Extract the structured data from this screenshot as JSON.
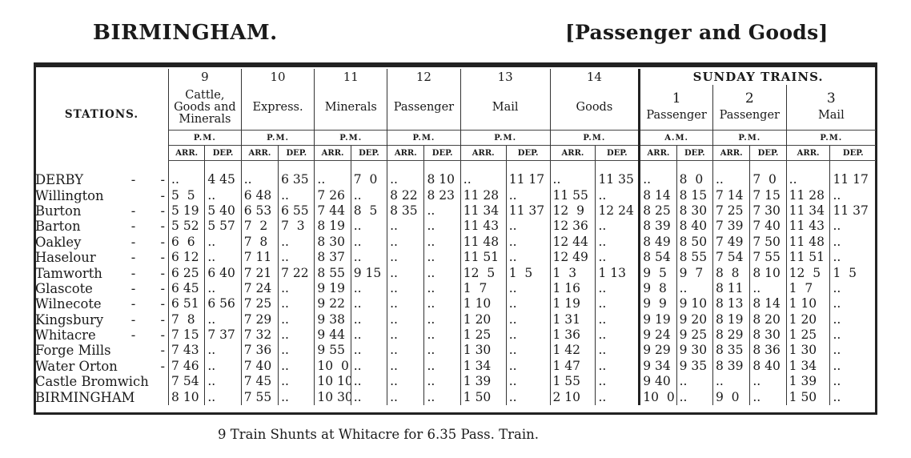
{
  "header": {
    "place": "BIRMINGHAM.",
    "category": "[Passenger and Goods]"
  },
  "columns": {
    "stations_label": "STATIONS.",
    "sunday_label": "SUNDAY TRAINS.",
    "weekday": [
      {
        "num": "9",
        "type": "Cattle, Goods and Minerals",
        "period": "P.M."
      },
      {
        "num": "10",
        "type": "Express.",
        "period": "P.M."
      },
      {
        "num": "11",
        "type": "Minerals",
        "period": "P.M."
      },
      {
        "num": "12",
        "type": "Passenger",
        "period": "P.M."
      },
      {
        "num": "13",
        "type": "Mail",
        "period": "P.M."
      },
      {
        "num": "14",
        "type": "Goods",
        "period": "P.M."
      }
    ],
    "sunday": [
      {
        "num": "1",
        "type": "Passenger",
        "period": "A.M."
      },
      {
        "num": "2",
        "type": "Passenger",
        "period": "P.M."
      },
      {
        "num": "3",
        "type": "Mail",
        "period": "P.M."
      }
    ],
    "arr": "ARR.",
    "dep": "DEP."
  },
  "rows": [
    {
      "station": "DERBY",
      "dash": "-      -",
      "times": [
        "..",
        "4 45",
        "..",
        "6 35",
        "..",
        "7  0",
        "..",
        "8 10",
        "..",
        "11 17",
        "..",
        "11 35",
        "..",
        "8  0",
        "..",
        "7  0",
        "..",
        "11 17"
      ]
    },
    {
      "station": "Willington",
      "dash": "-",
      "times": [
        "5  5",
        "..",
        "6 48",
        "..",
        "7 26",
        "..",
        "8 22",
        "8 23",
        "11 28",
        "..",
        "11 55",
        "..",
        "8 14",
        "8 15",
        "7 14",
        "7 15",
        "11 28",
        ".."
      ]
    },
    {
      "station": "Burton",
      "dash": "-      -",
      "times": [
        "5 19",
        "5 40",
        "6 53",
        "6 55",
        "7 44",
        "8  5",
        "8 35",
        "..",
        "11 34",
        "11 37",
        "12  9",
        "12 24",
        "8 25",
        "8 30",
        "7 25",
        "7 30",
        "11 34",
        "11 37"
      ]
    },
    {
      "station": "Barton",
      "dash": "-      -",
      "times": [
        "5 52",
        "5 57",
        "7  2",
        "7  3",
        "8 19",
        "..",
        "..",
        "..",
        "11 43",
        "..",
        "12 36",
        "..",
        "8 39",
        "8 40",
        "7 39",
        "7 40",
        "11 43",
        ".."
      ]
    },
    {
      "station": "Oakley",
      "dash": "-      -",
      "times": [
        "6  6",
        "..",
        "7  8",
        "..",
        "8 30",
        "..",
        "..",
        "..",
        "11 48",
        "..",
        "12 44",
        "..",
        "8 49",
        "8 50",
        "7 49",
        "7 50",
        "11 48",
        ".."
      ]
    },
    {
      "station": "Haselour",
      "dash": "-      -",
      "times": [
        "6 12",
        "..",
        "7 11",
        "..",
        "8 37",
        "..",
        "..",
        "..",
        "11 51",
        "..",
        "12 49",
        "..",
        "8 54",
        "8 55",
        "7 54",
        "7 55",
        "11 51",
        ".."
      ]
    },
    {
      "station": "Tamworth",
      "dash": "-      -",
      "times": [
        "6 25",
        "6 40",
        "7 21",
        "7 22",
        "8 55",
        "9 15",
        "..",
        "..",
        "12  5",
        "1  5",
        "1  3",
        "1 13",
        "9  5",
        "9  7",
        "8  8",
        "8 10",
        "12  5",
        "1  5"
      ]
    },
    {
      "station": "Glascote",
      "dash": "-      -",
      "times": [
        "6 45",
        "..",
        "7 24",
        "..",
        "9 19",
        "..",
        "..",
        "..",
        "1  7",
        "..",
        "1 16",
        "..",
        "9  8",
        "..",
        "8 11",
        "..",
        "1  7",
        ".."
      ]
    },
    {
      "station": "Wilnecote",
      "dash": "-      -",
      "times": [
        "6 51",
        "6 56",
        "7 25",
        "..",
        "9 22",
        "..",
        "..",
        "..",
        "1 10",
        "..",
        "1 19",
        "..",
        "9  9",
        "9 10",
        "8 13",
        "8 14",
        "1 10",
        ".."
      ]
    },
    {
      "station": "Kingsbury",
      "dash": "-      -",
      "times": [
        "7  8",
        "..",
        "7 29",
        "..",
        "9 38",
        "..",
        "..",
        "..",
        "1 20",
        "..",
        "1 31",
        "..",
        "9 19",
        "9 20",
        "8 19",
        "8 20",
        "1 20",
        ".."
      ]
    },
    {
      "station": "Whitacre",
      "dash": "-      -",
      "times": [
        "7 15",
        "7 37",
        "7 32",
        "..",
        "9 44",
        "..",
        "..",
        "..",
        "1 25",
        "..",
        "1 36",
        "..",
        "9 24",
        "9 25",
        "8 29",
        "8 30",
        "1 25",
        ".."
      ]
    },
    {
      "station": "Forge Mills",
      "dash": "-",
      "times": [
        "7 43",
        "..",
        "7 36",
        "..",
        "9 55",
        "..",
        "..",
        "..",
        "1 30",
        "..",
        "1 42",
        "..",
        "9 29",
        "9 30",
        "8 35",
        "8 36",
        "1 30",
        ".."
      ]
    },
    {
      "station": "Water Orton",
      "dash": "-",
      "times": [
        "7 46",
        "..",
        "7 40",
        "..",
        "10  0",
        "..",
        "..",
        "..",
        "1 34",
        "..",
        "1 47",
        "..",
        "9 34",
        "9 35",
        "8 39",
        "8 40",
        "1 34",
        ".."
      ]
    },
    {
      "station": "Castle Bromwich",
      "dash": "",
      "times": [
        "7 54",
        "..",
        "7 45",
        "..",
        "10 10",
        "..",
        "..",
        "..",
        "1 39",
        "..",
        "1 55",
        "..",
        "9 40",
        "..",
        "..",
        "..",
        "1 39",
        ".."
      ]
    },
    {
      "station": "BIRMINGHAM",
      "dash": "",
      "times": [
        "8 10",
        "..",
        "7 55",
        "..",
        "10 30",
        "..",
        "..",
        "..",
        "1 50",
        "..",
        "2 10",
        "..",
        "10  0",
        "..",
        "9  0",
        "..",
        "1 50",
        ".."
      ]
    }
  ],
  "footnote": "9 Train Shunts at Whitacre for 6.35 Pass. Train."
}
